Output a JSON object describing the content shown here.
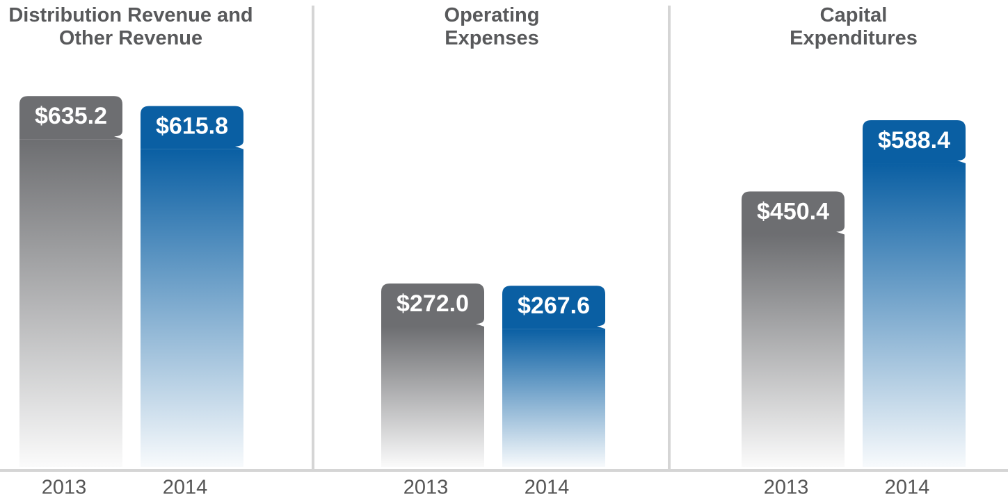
{
  "chart_data": [
    {
      "type": "bar",
      "title": "Distribution Revenue and Other Revenue",
      "categories": [
        "2013",
        "2014"
      ],
      "values": [
        635.2,
        615.8
      ],
      "value_labels": [
        "$635.2",
        "$615.8"
      ],
      "colors": [
        "#6d6e71",
        "#0a5fa3"
      ],
      "ylim": [
        0,
        750
      ]
    },
    {
      "type": "bar",
      "title": "Operating Expenses",
      "categories": [
        "2013",
        "2014"
      ],
      "values": [
        272.0,
        267.6
      ],
      "value_labels": [
        "$272.0",
        "$267.6"
      ],
      "colors": [
        "#6d6e71",
        "#0a5fa3"
      ],
      "ylim": [
        0,
        750
      ]
    },
    {
      "type": "bar",
      "title": "Capital Expenditures",
      "categories": [
        "2013",
        "2014"
      ],
      "values": [
        450.4,
        588.4
      ],
      "value_labels": [
        "$450.4",
        "$588.4"
      ],
      "colors": [
        "#6d6e71",
        "#0a5fa3"
      ],
      "ylim": [
        0,
        750
      ]
    }
  ]
}
